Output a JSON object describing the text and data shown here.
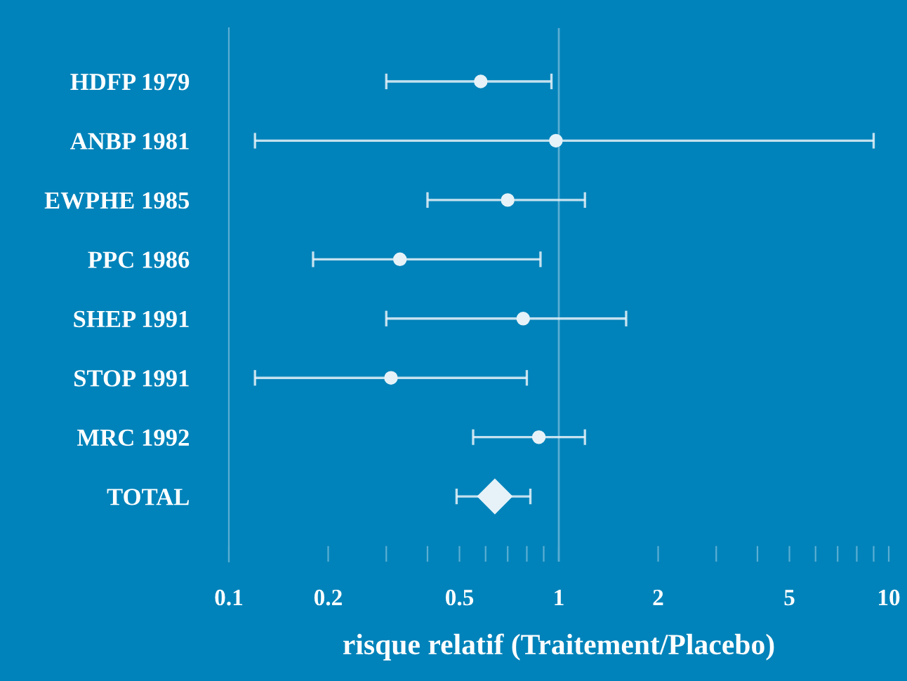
{
  "chart_data": {
    "type": "scatter",
    "orientation": "horizontal",
    "xlabel": "risque relatif (Traitement/Placebo)",
    "categories": [
      "HDFP 1979",
      "ANBP 1981",
      "EWPHE 1985",
      "PPC 1986",
      "SHEP 1991",
      "STOP 1991",
      "MRC 1992",
      "TOTAL"
    ],
    "series": [
      {
        "color": "#e6f2f8",
        "marker": "circle",
        "values": [
          0.58,
          0.98,
          0.7,
          0.33,
          0.78,
          0.31,
          0.87,
          null
        ],
        "errors": [
          [
            0.3,
            0.95
          ],
          [
            0.12,
            9.0
          ],
          [
            0.4,
            1.2
          ],
          [
            0.18,
            0.88
          ],
          [
            0.3,
            1.6
          ],
          [
            0.12,
            0.8
          ],
          [
            0.55,
            1.2
          ],
          null
        ]
      },
      {
        "color": "#e6f2f8",
        "marker": "diamond",
        "values": [
          null,
          null,
          null,
          null,
          null,
          null,
          null,
          0.64
        ],
        "errors": [
          null,
          null,
          null,
          null,
          null,
          null,
          null,
          [
            0.49,
            0.82
          ]
        ]
      }
    ],
    "log": "x",
    "xlim": [
      0.1,
      10
    ],
    "xticks": [
      0.1,
      0.2,
      {
        "value": 0.3,
        "label": null
      },
      {
        "value": 0.4,
        "label": null
      },
      0.5,
      {
        "value": 0.6,
        "label": null
      },
      {
        "value": 0.7,
        "label": null
      },
      {
        "value": 0.8,
        "label": null
      },
      {
        "value": 0.9,
        "label": null
      },
      1,
      2,
      {
        "value": 3,
        "label": null
      },
      {
        "value": 4,
        "label": null
      },
      5,
      {
        "value": 6,
        "label": null
      },
      {
        "value": 7,
        "label": null
      },
      {
        "value": 8,
        "label": null
      },
      {
        "value": 9,
        "label": null
      },
      10
    ],
    "ref_lines": [
      {
        "axis": "x",
        "value": 1,
        "color": "#5aaed3"
      }
    ],
    "grid": false,
    "legend": false
  }
}
